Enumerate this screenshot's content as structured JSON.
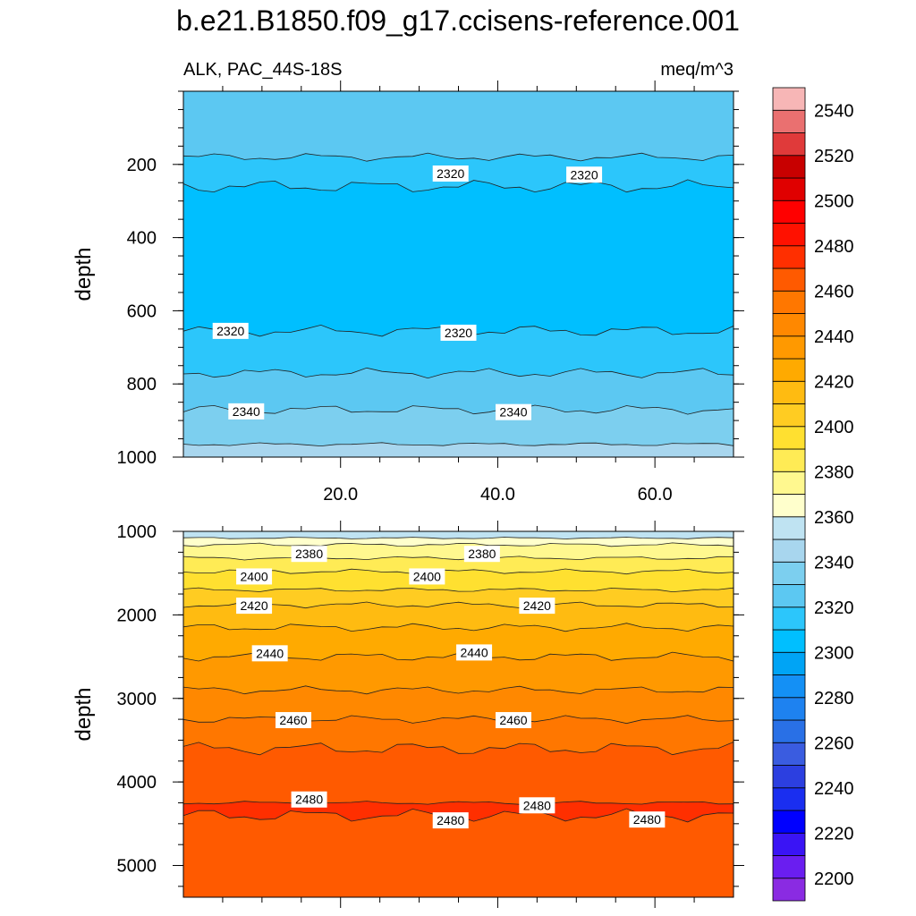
{
  "chart_data": {
    "type": "contour",
    "title": "b.e21.B1850.f09_g17.ccisens-reference.001",
    "left_subtitle": "ALK, PAC_44S-18S",
    "right_subtitle": "meq/m^3",
    "panels": [
      {
        "name": "upper",
        "xlabel": "",
        "ylabel": "depth",
        "xlim": [
          0,
          70
        ],
        "ylim": [
          1000,
          0
        ],
        "x_ticks": [
          20,
          40,
          60
        ],
        "x_tick_labels": [
          "20.0",
          "40.0",
          "60.0"
        ],
        "y_ticks": [
          200,
          400,
          600,
          800,
          1000
        ],
        "y_tick_labels": [
          "200",
          "400",
          "600",
          "800",
          "1000"
        ],
        "bands": [
          {
            "top": 0,
            "bottom": 180,
            "value": 2330
          },
          {
            "top": 180,
            "bottom": 260,
            "value": 2320
          },
          {
            "top": 260,
            "bottom": 655,
            "value": 2310
          },
          {
            "top": 655,
            "bottom": 770,
            "value": 2320
          },
          {
            "top": 770,
            "bottom": 870,
            "value": 2330
          },
          {
            "top": 870,
            "bottom": 965,
            "value": 2340
          },
          {
            "top": 965,
            "bottom": 1000,
            "value": 2350
          }
        ],
        "contour_labels": [
          {
            "x": 34,
            "depth": 225,
            "text": "2320"
          },
          {
            "x": 51,
            "depth": 228,
            "text": "2320"
          },
          {
            "x": 6,
            "depth": 655,
            "text": "2320"
          },
          {
            "x": 35,
            "depth": 660,
            "text": "2320"
          },
          {
            "x": 8,
            "depth": 875,
            "text": "2340"
          },
          {
            "x": 42,
            "depth": 877,
            "text": "2340"
          }
        ]
      },
      {
        "name": "lower",
        "xlabel": "",
        "ylabel": "depth",
        "xlim": [
          0,
          70
        ],
        "ylim": [
          5380,
          1000
        ],
        "x_ticks": [
          20,
          40,
          60
        ],
        "x_tick_labels": [
          "",
          "",
          ""
        ],
        "y_ticks": [
          1000,
          2000,
          3000,
          4000,
          5000
        ],
        "y_tick_labels": [
          "1000",
          "2000",
          "3000",
          "4000",
          "5000"
        ],
        "bands": [
          {
            "top": 1000,
            "bottom": 1080,
            "value": 2360
          },
          {
            "top": 1080,
            "bottom": 1160,
            "value": 2370
          },
          {
            "top": 1160,
            "bottom": 1320,
            "value": 2380
          },
          {
            "top": 1320,
            "bottom": 1480,
            "value": 2390
          },
          {
            "top": 1480,
            "bottom": 1700,
            "value": 2400
          },
          {
            "top": 1700,
            "bottom": 1880,
            "value": 2410
          },
          {
            "top": 1880,
            "bottom": 2150,
            "value": 2420
          },
          {
            "top": 2150,
            "bottom": 2500,
            "value": 2430
          },
          {
            "top": 2500,
            "bottom": 2900,
            "value": 2440
          },
          {
            "top": 2900,
            "bottom": 3250,
            "value": 2450
          },
          {
            "top": 3250,
            "bottom": 3600,
            "value": 2460
          },
          {
            "top": 3600,
            "bottom": 4250,
            "value": 2470
          },
          {
            "top": 4250,
            "bottom": 4400,
            "value": 2480
          },
          {
            "top": 4400,
            "bottom": 5380,
            "value": 2470
          }
        ],
        "contour_labels": [
          {
            "x": 16,
            "depth": 1270,
            "text": "2380"
          },
          {
            "x": 38,
            "depth": 1270,
            "text": "2380"
          },
          {
            "x": 9,
            "depth": 1540,
            "text": "2400"
          },
          {
            "x": 31,
            "depth": 1540,
            "text": "2400"
          },
          {
            "x": 9,
            "depth": 1890,
            "text": "2420"
          },
          {
            "x": 45,
            "depth": 1890,
            "text": "2420"
          },
          {
            "x": 11,
            "depth": 2460,
            "text": "2440"
          },
          {
            "x": 37,
            "depth": 2450,
            "text": "2440"
          },
          {
            "x": 14,
            "depth": 3260,
            "text": "2460"
          },
          {
            "x": 42,
            "depth": 3260,
            "text": "2460"
          },
          {
            "x": 16,
            "depth": 4210,
            "text": "2480"
          },
          {
            "x": 45,
            "depth": 4280,
            "text": "2480"
          },
          {
            "x": 34,
            "depth": 4460,
            "text": "2480"
          },
          {
            "x": 59,
            "depth": 4450,
            "text": "2480"
          }
        ]
      }
    ],
    "colorbar": {
      "levels": [
        2200,
        2210,
        2220,
        2230,
        2240,
        2250,
        2260,
        2270,
        2280,
        2290,
        2300,
        2310,
        2320,
        2330,
        2340,
        2350,
        2360,
        2370,
        2380,
        2390,
        2400,
        2410,
        2420,
        2430,
        2440,
        2450,
        2460,
        2470,
        2480,
        2490,
        2500,
        2510,
        2520,
        2530,
        2540,
        2550
      ],
      "labels": [
        "2200",
        "2220",
        "2240",
        "2260",
        "2280",
        "2300",
        "2320",
        "2340",
        "2360",
        "2380",
        "2400",
        "2420",
        "2440",
        "2460",
        "2480",
        "2500",
        "2520",
        "2540"
      ],
      "colors": [
        "#8a2be2",
        "#6a1ef0",
        "#3a14f5",
        "#0000ff",
        "#1a2ef0",
        "#2c3fe0",
        "#3a5ce0",
        "#2970e6",
        "#1e82f0",
        "#1490f5",
        "#00a4f5",
        "#00bfff",
        "#2cc6fb",
        "#5cc8f2",
        "#7ccfef",
        "#a8d6ee",
        "#bfe3f2",
        "#ffffcc",
        "#fff88f",
        "#ffeb55",
        "#ffe030",
        "#ffcc22",
        "#ffbb11",
        "#ffaa00",
        "#ff9900",
        "#ff8800",
        "#ff7700",
        "#ff5a00",
        "#ff2f00",
        "#ff1100",
        "#ff0000",
        "#e00000",
        "#c80000",
        "#e03a3a",
        "#ea7070",
        "#f7b6b6"
      ]
    }
  }
}
